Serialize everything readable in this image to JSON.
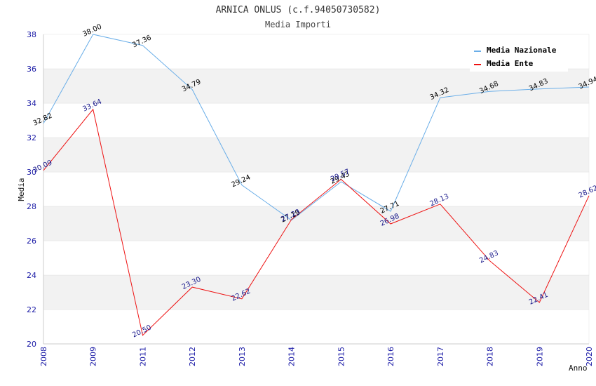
{
  "chart_data": {
    "type": "line",
    "title": "ARNICA ONLUS (c.f.94050730582)",
    "subtitle": "Media Importi",
    "xlabel": "Anno",
    "ylabel": "Media",
    "ylim": [
      20,
      38
    ],
    "yticks": [
      "20",
      "22",
      "24",
      "26",
      "28",
      "30",
      "32",
      "34",
      "36",
      "38"
    ],
    "categories": [
      "2008",
      "2009",
      "2011",
      "2012",
      "2013",
      "2014",
      "2015",
      "2016",
      "2017",
      "2018",
      "2019",
      "2020"
    ],
    "grid": "horizontal alternating bands",
    "legend_position": "top-right",
    "series": [
      {
        "name": "Media Nazionale",
        "color": "#6aaee8",
        "label_color": "#000000",
        "values": [
          32.82,
          38.0,
          37.36,
          34.79,
          29.24,
          27.19,
          29.43,
          27.71,
          34.32,
          34.68,
          34.83,
          34.94
        ],
        "labels": [
          "32.82",
          "38.00",
          "37.36",
          "34.79",
          "29.24",
          "27.19",
          "29.43",
          "27.71",
          "34.32",
          "34.68",
          "34.83",
          "34.94"
        ]
      },
      {
        "name": "Media Ente",
        "color": "#ee1111",
        "label_color": "#1a1a8c",
        "values": [
          30.09,
          33.64,
          20.5,
          23.3,
          22.62,
          27.23,
          29.57,
          26.98,
          28.13,
          24.83,
          22.41,
          28.62
        ],
        "labels": [
          "30.09",
          "33.64",
          "20.50",
          "23.30",
          "22.62",
          "27.23",
          "29.57",
          "26.98",
          "28.13",
          "24.83",
          "22.41",
          "28.62"
        ]
      }
    ]
  }
}
